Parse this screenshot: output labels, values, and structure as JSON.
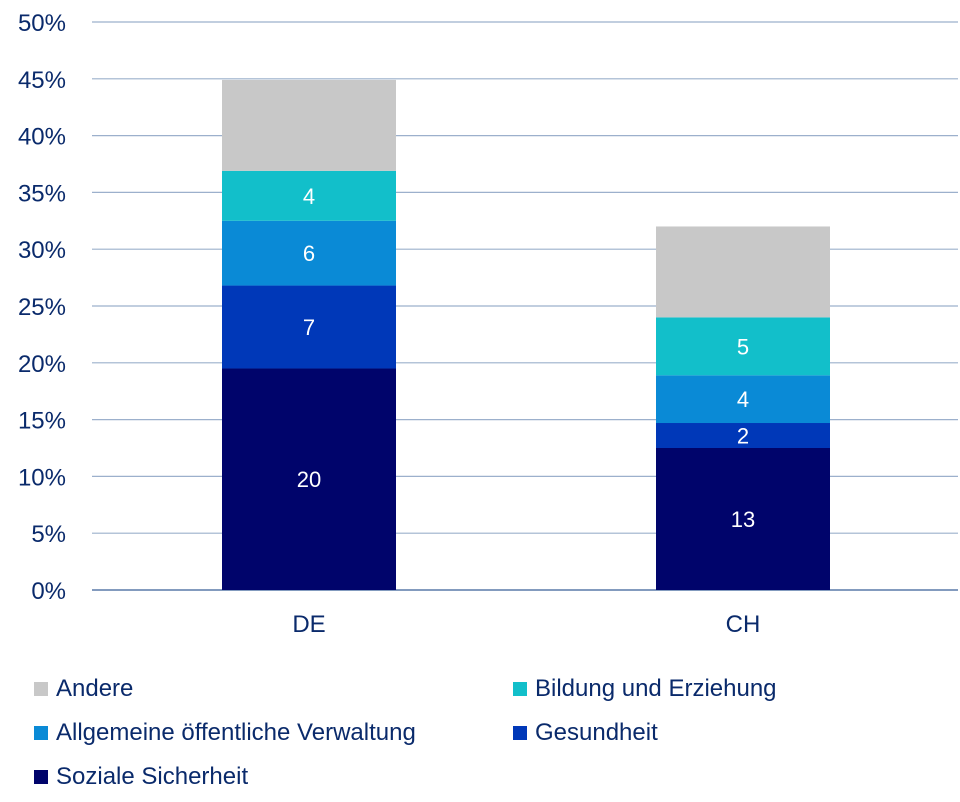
{
  "chart_data": {
    "type": "bar",
    "stacked": true,
    "categories": [
      "DE",
      "CH"
    ],
    "series": [
      {
        "name": "Soziale Sicherheit",
        "values": [
          19.5,
          12.5
        ],
        "labels": [
          "20",
          "13"
        ],
        "color": "#00046b"
      },
      {
        "name": "Gesundheit",
        "values": [
          7.3,
          2.2
        ],
        "labels": [
          "7",
          "2"
        ],
        "color": "#0038b8"
      },
      {
        "name": "Allgemeine öffentliche Verwaltung",
        "values": [
          5.7,
          4.2
        ],
        "labels": [
          "6",
          "4"
        ],
        "color": "#0a8ad6"
      },
      {
        "name": "Bildung und Erziehung",
        "values": [
          4.4,
          5.1
        ],
        "labels": [
          "4",
          "5"
        ],
        "color": "#12bfca"
      },
      {
        "name": "Andere",
        "values": [
          8.0,
          8.0
        ],
        "labels": [
          "",
          ""
        ],
        "color": "#c8c8c8"
      }
    ],
    "ylim": [
      0,
      50
    ],
    "yticks": [
      "0%",
      "5%",
      "10%",
      "15%",
      "20%",
      "25%",
      "30%",
      "35%",
      "40%",
      "45%",
      "50%"
    ],
    "ytick_values": [
      0,
      5,
      10,
      15,
      20,
      25,
      30,
      35,
      40,
      45,
      50
    ],
    "grid": true,
    "legend_position": "bottom",
    "xlabel": "",
    "ylabel": "",
    "title": ""
  },
  "legend": [
    {
      "label": "Andere",
      "color": "#c8c8c8"
    },
    {
      "label": "Bildung und Erziehung",
      "color": "#12bfca"
    },
    {
      "label": "Allgemeine öffentliche Verwaltung",
      "color": "#0a8ad6"
    },
    {
      "label": "Gesundheit",
      "color": "#0038b8"
    },
    {
      "label": "Soziale Sicherheit",
      "color": "#00046b"
    }
  ]
}
